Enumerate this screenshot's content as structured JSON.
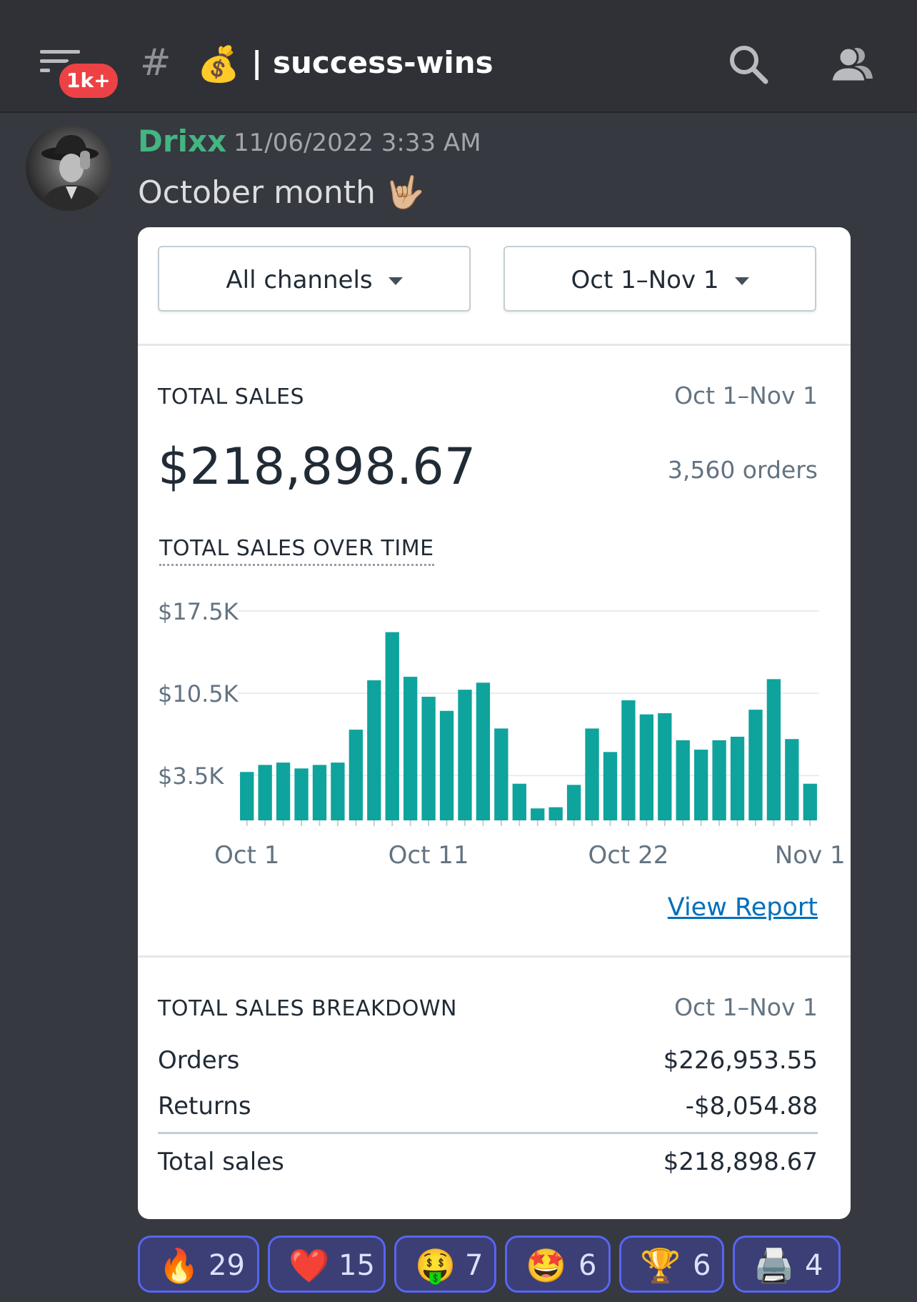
{
  "header": {
    "badge": "1k+",
    "hash": "#",
    "channel_emoji": "💰",
    "channel_name": "| success-wins"
  },
  "message": {
    "username": "Drixx",
    "username_color": "#43b581",
    "timestamp": "11/06/2022 3:33 AM",
    "text": "October month 🤟🏼"
  },
  "embed": {
    "channel_filter": "All channels",
    "date_filter": "Oct 1–Nov 1",
    "total_sales": {
      "title": "TOTAL SALES",
      "range": "Oct 1–Nov 1",
      "amount": "$218,898.67",
      "orders": "3,560 orders"
    },
    "over_time_title": "TOTAL SALES OVER TIME",
    "view_report": "View Report",
    "breakdown": {
      "title": "TOTAL SALES BREAKDOWN",
      "range": "Oct 1–Nov 1",
      "rows": [
        {
          "label": "Orders",
          "value": "$226,953.55"
        },
        {
          "label": "Returns",
          "value": "-$8,054.88"
        },
        {
          "label": "Total sales",
          "value": "$218,898.67"
        }
      ]
    }
  },
  "chart_data": {
    "type": "bar",
    "color": "#0fa39d",
    "ytick_labels": [
      "$17.5K",
      "$10.5K",
      "$3.5K"
    ],
    "yticks": [
      17500,
      10500,
      3500
    ],
    "xtick_labels": [
      "Oct 1",
      "Oct 11",
      "Oct 22",
      "Nov 1"
    ],
    "xtick_index": [
      0,
      10,
      21,
      31
    ],
    "ylim": [
      -500,
      17500
    ],
    "values": [
      3800,
      4400,
      4600,
      4100,
      4400,
      4600,
      7400,
      11600,
      15700,
      11900,
      10200,
      9000,
      10800,
      11400,
      7500,
      2800,
      700,
      800,
      2700,
      7500,
      5500,
      9900,
      8700,
      8800,
      6500,
      5700,
      6500,
      6800,
      9100,
      11700,
      6600,
      2800
    ]
  },
  "reactions": [
    {
      "emoji": "🔥",
      "count": "29"
    },
    {
      "emoji": "❤️",
      "count": "15"
    },
    {
      "emoji": "🤑",
      "count": "7"
    },
    {
      "emoji": "🤩",
      "count": "6"
    },
    {
      "emoji": "🏆",
      "count": "6"
    },
    {
      "emoji": "🖨️",
      "count": "4"
    }
  ]
}
